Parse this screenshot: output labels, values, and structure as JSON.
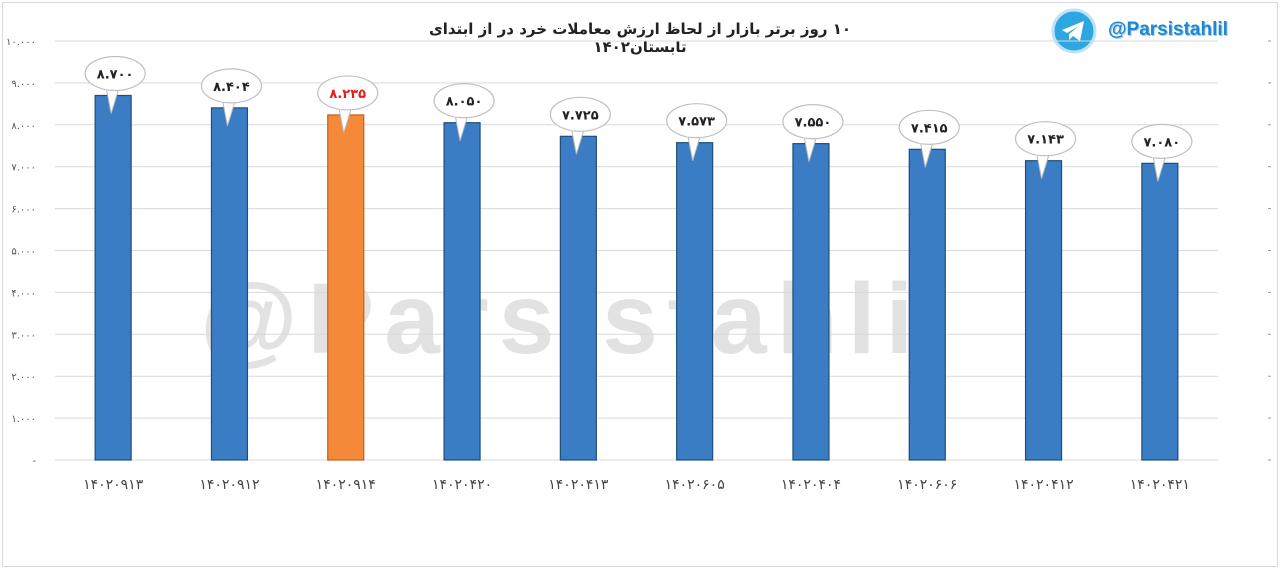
{
  "chart_data": {
    "type": "bar",
    "title": "۱۰ روز برتر بازار از لحاظ ارزش معاملات خرد در از ابتدای تابستان۱۴۰۲",
    "categories": [
      "۱۴۰۲۰۹۱۳",
      "۱۴۰۲۰۹۱۲",
      "۱۴۰۲۰۹۱۴",
      "۱۴۰۲۰۴۲۰",
      "۱۴۰۲۰۴۱۳",
      "۱۴۰۲۰۶۰۵",
      "۱۴۰۲۰۴۰۴",
      "۱۴۰۲۰۶۰۶",
      "۱۴۰۲۰۴۱۲",
      "۱۴۰۲۰۴۲۱"
    ],
    "values": [
      8700,
      8404,
      8235,
      8050,
      7725,
      7573,
      7550,
      7415,
      7143,
      7080
    ],
    "data_labels": [
      "۸.۷۰۰",
      "۸.۴۰۴",
      "۸.۲۳۵",
      "۸.۰۵۰",
      "۷.۷۲۵",
      "۷.۵۷۳",
      "۷.۵۵۰",
      "۷.۴۱۵",
      "۷.۱۴۳",
      "۷.۰۸۰"
    ],
    "highlight_index": 2,
    "y_ticks": [
      0,
      1000,
      2000,
      3000,
      4000,
      5000,
      6000,
      7000,
      8000,
      9000,
      10000
    ],
    "y_tick_labels": [
      "-",
      "۱.۰۰۰",
      "۲.۰۰۰",
      "۳.۰۰۰",
      "۴.۰۰۰",
      "۵.۰۰۰",
      "۶.۰۰۰",
      "۷.۰۰۰",
      "۸.۰۰۰",
      "۹.۰۰۰",
      "۱۰.۰۰۰"
    ],
    "ylim": [
      0,
      10000
    ],
    "grid": true,
    "colors": {
      "bar": "#3a7dc4",
      "bar_dark": "#1f4e7a",
      "highlight": "#f5893a",
      "highlight_dark": "#c0601c",
      "highlight_label": "#e02020",
      "grid": "#d9d9d9"
    }
  },
  "branding": {
    "handle": "@Parsistahlil",
    "icon": "telegram-icon",
    "watermark": "@Parsistahlil"
  }
}
